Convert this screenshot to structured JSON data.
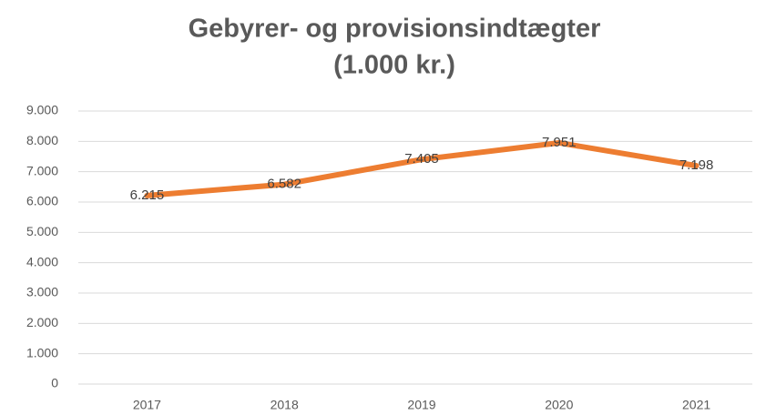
{
  "chart_data": {
    "type": "line",
    "title": [
      "Gebyrer- og provisionsindtægter",
      "(1.000 kr.)"
    ],
    "categories": [
      "2017",
      "2018",
      "2019",
      "2020",
      "2021"
    ],
    "values": [
      6215,
      6582,
      7405,
      7951,
      7198
    ],
    "value_labels": [
      "6.215",
      "6.582",
      "7.405",
      "7.951",
      "7.198"
    ],
    "color": "#ed7d31",
    "ylim": [
      0,
      9000
    ],
    "yticks": [
      0,
      {
        "value": 1000,
        "label": "1.000"
      },
      {
        "value": 2000,
        "label": "2.000"
      },
      {
        "value": 3000,
        "label": "3.000"
      },
      {
        "value": 4000,
        "label": "4.000"
      },
      {
        "value": 5000,
        "label": "5.000"
      },
      {
        "value": 6000,
        "label": "6.000"
      },
      {
        "value": 7000,
        "label": "7.000"
      },
      {
        "value": 8000,
        "label": "8.000"
      },
      {
        "value": 9000,
        "label": "9.000"
      }
    ],
    "grid": true
  }
}
